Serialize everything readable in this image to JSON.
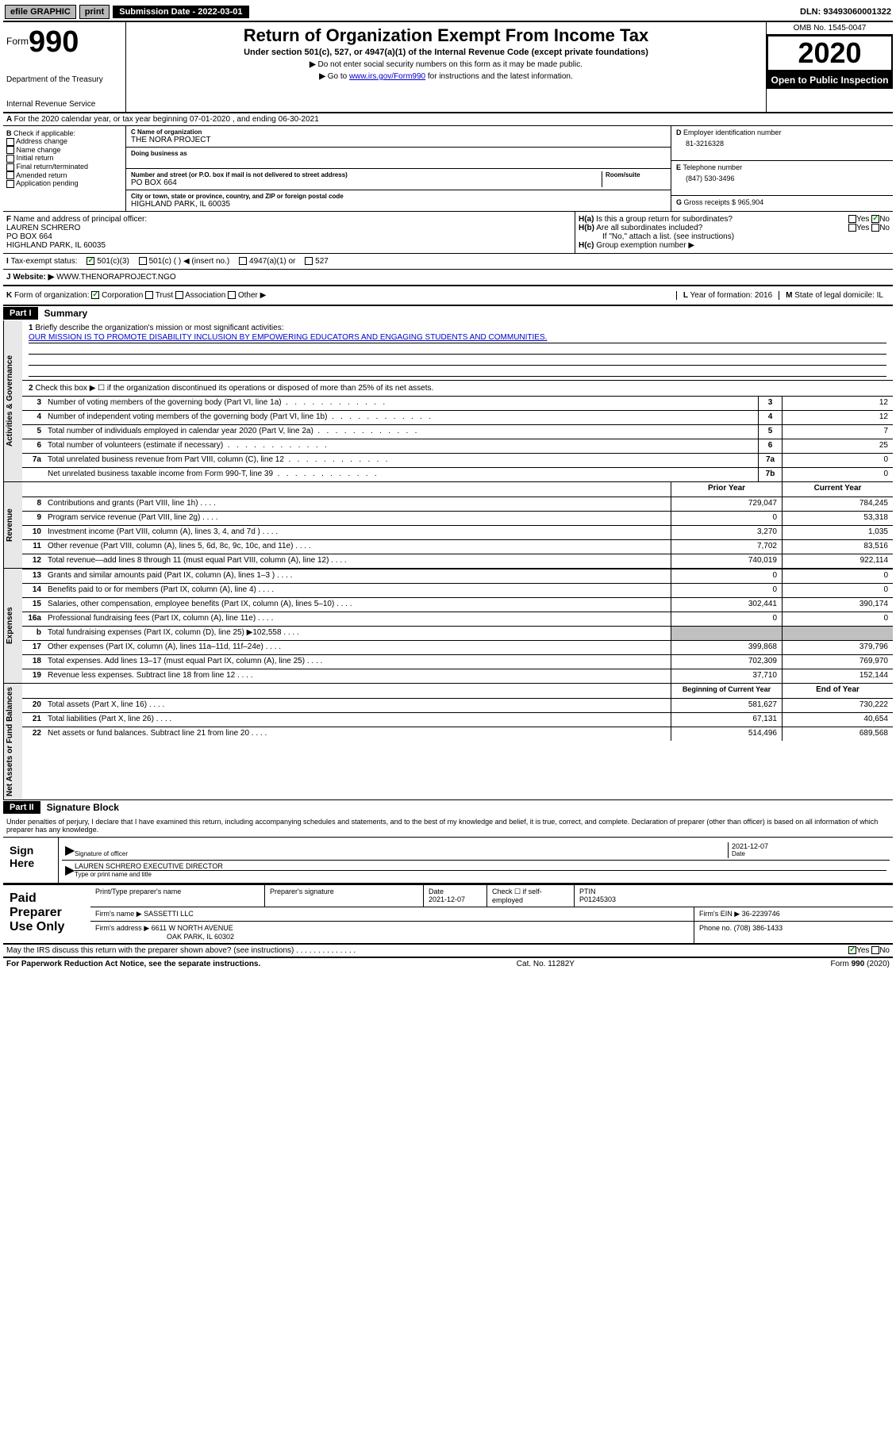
{
  "topbar": {
    "efile": "efile GRAPHIC",
    "print": "print",
    "submission": "Submission Date - 2022-03-01",
    "dln": "DLN: 93493060001322"
  },
  "header": {
    "form": "Form",
    "form_num": "990",
    "dept": "Department of the Treasury",
    "irs": "Internal Revenue Service",
    "title": "Return of Organization Exempt From Income Tax",
    "subtitle": "Under section 501(c), 527, or 4947(a)(1) of the Internal Revenue Code (except private foundations)",
    "note1": "Do not enter social security numbers on this form as it may be made public.",
    "note2_pre": "Go to ",
    "note2_link": "www.irs.gov/Form990",
    "note2_post": " for instructions and the latest information.",
    "omb": "OMB No. 1545-0047",
    "year": "2020",
    "inspection": "Open to Public Inspection"
  },
  "a_row": "For the 2020 calendar year, or tax year beginning 07-01-2020   , and ending 06-30-2021",
  "box_b": {
    "title": "Check if applicable:",
    "address": "Address change",
    "name": "Name change",
    "initial": "Initial return",
    "final": "Final return/terminated",
    "amended": "Amended return",
    "app": "Application pending"
  },
  "box_c": {
    "label_name": "Name of organization",
    "name": "THE NORA PROJECT",
    "dba_label": "Doing business as",
    "addr_label": "Number and street (or P.O. box if mail is not delivered to street address)",
    "room_label": "Room/suite",
    "addr": "PO BOX 664",
    "city_label": "City or town, state or province, country, and ZIP or foreign postal code",
    "city": "HIGHLAND PARK, IL  60035"
  },
  "box_d": {
    "label": "Employer identification number",
    "val": "81-3216328"
  },
  "box_e": {
    "label": "Telephone number",
    "val": "(847) 530-3496"
  },
  "box_g": {
    "label": "Gross receipts $",
    "val": "965,904"
  },
  "box_f": {
    "label": "Name and address of principal officer:",
    "name": "LAUREN SCHRERO",
    "addr": "PO BOX 664",
    "city": "HIGHLAND PARK, IL  60035"
  },
  "box_h": {
    "ha": "Is this a group return for subordinates?",
    "hb": "Are all subordinates included?",
    "hb_note": "If \"No,\" attach a list. (see instructions)",
    "hc": "Group exemption number ▶",
    "yes": "Yes",
    "no": "No"
  },
  "box_i": {
    "label": "Tax-exempt status:",
    "c3": "501(c)(3)",
    "c": "501(c) (  ) ◀ (insert no.)",
    "a1": "4947(a)(1) or",
    "s527": "527"
  },
  "box_j": {
    "label": "Website: ▶",
    "val": "WWW.THENORAPROJECT.NGO"
  },
  "box_k": {
    "label": "Form of organization:",
    "corp": "Corporation",
    "trust": "Trust",
    "assoc": "Association",
    "other": "Other ▶"
  },
  "box_l": {
    "label": "Year of formation:",
    "val": "2016"
  },
  "box_m": {
    "label": "State of legal domicile:",
    "val": "IL"
  },
  "part1": {
    "header": "Part I",
    "title": "Summary",
    "q1_label": "Briefly describe the organization's mission or most significant activities:",
    "q1_val": "OUR MISSION IS TO PROMOTE DISABILITY INCLUSION BY EMPOWERING EDUCATORS AND ENGAGING STUDENTS AND COMMUNITIES.",
    "q2": "Check this box ▶ ☐  if the organization discontinued its operations or disposed of more than 25% of its net assets.",
    "tab_gov": "Activities & Governance",
    "tab_rev": "Revenue",
    "tab_exp": "Expenses",
    "tab_net": "Net Assets or Fund Balances",
    "rows_gov": [
      {
        "n": "3",
        "l": "Number of voting members of the governing body (Part VI, line 1a)",
        "rn": "3",
        "v": "12"
      },
      {
        "n": "4",
        "l": "Number of independent voting members of the governing body (Part VI, line 1b)",
        "rn": "4",
        "v": "12"
      },
      {
        "n": "5",
        "l": "Total number of individuals employed in calendar year 2020 (Part V, line 2a)",
        "rn": "5",
        "v": "7"
      },
      {
        "n": "6",
        "l": "Total number of volunteers (estimate if necessary)",
        "rn": "6",
        "v": "25"
      },
      {
        "n": "7a",
        "l": "Total unrelated business revenue from Part VIII, column (C), line 12",
        "rn": "7a",
        "v": "0"
      },
      {
        "n": "",
        "l": "Net unrelated business taxable income from Form 990-T, line 39",
        "rn": "7b",
        "v": "0"
      }
    ],
    "col_prior": "Prior Year",
    "col_current": "Current Year",
    "rows_rev": [
      {
        "n": "8",
        "l": "Contributions and grants (Part VIII, line 1h)",
        "p": "729,047",
        "c": "784,245"
      },
      {
        "n": "9",
        "l": "Program service revenue (Part VIII, line 2g)",
        "p": "0",
        "c": "53,318"
      },
      {
        "n": "10",
        "l": "Investment income (Part VIII, column (A), lines 3, 4, and 7d )",
        "p": "3,270",
        "c": "1,035"
      },
      {
        "n": "11",
        "l": "Other revenue (Part VIII, column (A), lines 5, 6d, 8c, 9c, 10c, and 11e)",
        "p": "7,702",
        "c": "83,516"
      },
      {
        "n": "12",
        "l": "Total revenue—add lines 8 through 11 (must equal Part VIII, column (A), line 12)",
        "p": "740,019",
        "c": "922,114"
      }
    ],
    "rows_exp": [
      {
        "n": "13",
        "l": "Grants and similar amounts paid (Part IX, column (A), lines 1–3 )",
        "p": "0",
        "c": "0"
      },
      {
        "n": "14",
        "l": "Benefits paid to or for members (Part IX, column (A), line 4)",
        "p": "0",
        "c": "0"
      },
      {
        "n": "15",
        "l": "Salaries, other compensation, employee benefits (Part IX, column (A), lines 5–10)",
        "p": "302,441",
        "c": "390,174"
      },
      {
        "n": "16a",
        "l": "Professional fundraising fees (Part IX, column (A), line 11e)",
        "p": "0",
        "c": "0"
      },
      {
        "n": "b",
        "l": "Total fundraising expenses (Part IX, column (D), line 25) ▶102,558",
        "p": "",
        "c": "",
        "shaded": true
      },
      {
        "n": "17",
        "l": "Other expenses (Part IX, column (A), lines 11a–11d, 11f–24e)",
        "p": "399,868",
        "c": "379,796"
      },
      {
        "n": "18",
        "l": "Total expenses. Add lines 13–17 (must equal Part IX, column (A), line 25)",
        "p": "702,309",
        "c": "769,970"
      },
      {
        "n": "19",
        "l": "Revenue less expenses. Subtract line 18 from line 12",
        "p": "37,710",
        "c": "152,144"
      }
    ],
    "col_begin": "Beginning of Current Year",
    "col_end": "End of Year",
    "rows_net": [
      {
        "n": "20",
        "l": "Total assets (Part X, line 16)",
        "p": "581,627",
        "c": "730,222"
      },
      {
        "n": "21",
        "l": "Total liabilities (Part X, line 26)",
        "p": "67,131",
        "c": "40,654"
      },
      {
        "n": "22",
        "l": "Net assets or fund balances. Subtract line 21 from line 20",
        "p": "514,496",
        "c": "689,568"
      }
    ]
  },
  "part2": {
    "header": "Part II",
    "title": "Signature Block",
    "perjury": "Under penalties of perjury, I declare that I have examined this return, including accompanying schedules and statements, and to the best of my knowledge and belief, it is true, correct, and complete. Declaration of preparer (other than officer) is based on all information of which preparer has any knowledge.",
    "sign_here": "Sign Here",
    "sig_officer": "Signature of officer",
    "sig_date": "2021-12-07",
    "date_label": "Date",
    "sig_name": "LAUREN SCHRERO  EXECUTIVE DIRECTOR",
    "sig_name_label": "Type or print name and title",
    "paid": "Paid Preparer Use Only",
    "prep_name_label": "Print/Type preparer's name",
    "prep_sig_label": "Preparer's signature",
    "prep_date_label": "Date",
    "prep_date": "2021-12-07",
    "prep_check": "Check ☐ if self-employed",
    "ptin_label": "PTIN",
    "ptin": "P01245303",
    "firm_name_label": "Firm's name    ▶",
    "firm_name": "SASSETTI LLC",
    "firm_ein_label": "Firm's EIN ▶",
    "firm_ein": "36-2239746",
    "firm_addr_label": "Firm's address ▶",
    "firm_addr": "6611 W NORTH AVENUE",
    "firm_city": "OAK PARK, IL  60302",
    "phone_label": "Phone no.",
    "phone": "(708) 386-1433",
    "discuss": "May the IRS discuss this return with the preparer shown above? (see instructions)",
    "yes": "Yes",
    "no": "No"
  },
  "footer": {
    "paperwork": "For Paperwork Reduction Act Notice, see the separate instructions.",
    "cat": "Cat. No. 11282Y",
    "form": "Form 990 (2020)"
  }
}
